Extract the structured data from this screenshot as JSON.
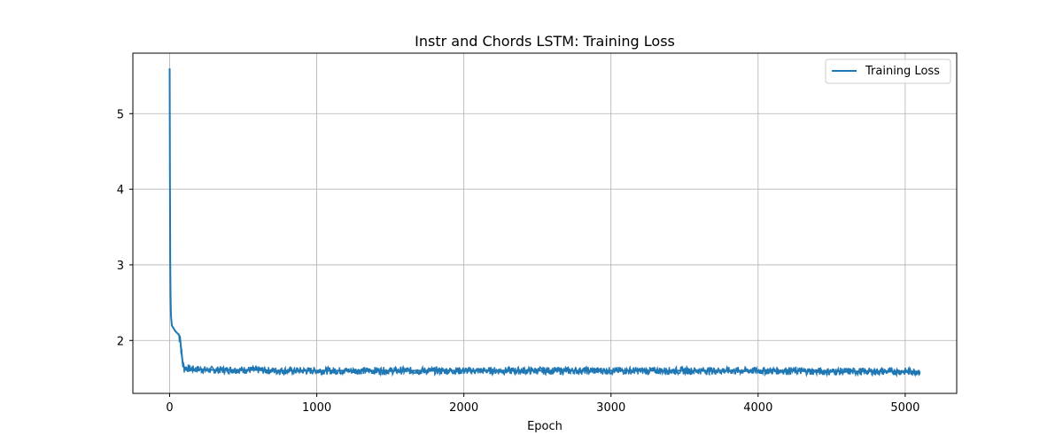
{
  "chart_data": {
    "type": "line",
    "title": "Instr and Chords LSTM: Training Loss",
    "xlabel": "Epoch",
    "ylabel": "",
    "xlim": [
      -250,
      5350
    ],
    "ylim": [
      1.3,
      5.8
    ],
    "xticks": [
      0,
      1000,
      2000,
      3000,
      4000,
      5000
    ],
    "yticks": [
      2,
      3,
      4,
      5
    ],
    "grid": true,
    "legend": "top-right",
    "series": [
      {
        "name": "Training Loss",
        "color": "#1f77b4",
        "x": [
          0,
          2,
          4,
          6,
          8,
          10,
          15,
          20,
          30,
          40,
          50,
          60,
          70,
          80,
          90,
          100,
          120,
          150,
          200,
          250,
          300,
          400,
          500,
          600,
          700,
          800,
          900,
          1000,
          1100,
          1200,
          1300,
          1400,
          1500,
          1600,
          1700,
          1800,
          1900,
          2000,
          2200,
          2400,
          2600,
          2800,
          3000,
          3200,
          3400,
          3600,
          3800,
          4000,
          4200,
          4400,
          4600,
          4800,
          5000,
          5100
        ],
        "values": [
          5.6,
          4.1,
          3.0,
          2.6,
          2.4,
          2.3,
          2.2,
          2.18,
          2.15,
          2.12,
          2.1,
          2.08,
          2.05,
          1.85,
          1.68,
          1.64,
          1.63,
          1.62,
          1.62,
          1.61,
          1.61,
          1.61,
          1.61,
          1.61,
          1.6,
          1.6,
          1.6,
          1.6,
          1.6,
          1.6,
          1.6,
          1.6,
          1.6,
          1.6,
          1.6,
          1.6,
          1.6,
          1.6,
          1.6,
          1.6,
          1.6,
          1.6,
          1.6,
          1.6,
          1.6,
          1.6,
          1.6,
          1.6,
          1.6,
          1.59,
          1.59,
          1.59,
          1.59,
          1.59
        ]
      }
    ]
  }
}
